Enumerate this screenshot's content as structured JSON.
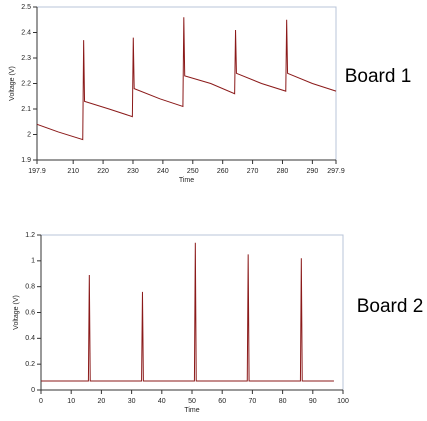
{
  "chart_data": [
    {
      "type": "line",
      "annotation": "Board 1",
      "xlabel": "Time",
      "ylabel": "Voltage (V)",
      "color": "#8b1a1a",
      "x": [
        197.9,
        205,
        213.2,
        213.5,
        213.8,
        222,
        229.8,
        230.1,
        230.4,
        239,
        246.7,
        247,
        247.3,
        256,
        264,
        264.3,
        264.6,
        273,
        281.1,
        281.4,
        281.7,
        290,
        297.9
      ],
      "values": [
        2.04,
        2.01,
        1.98,
        2.37,
        2.13,
        2.1,
        2.07,
        2.38,
        2.18,
        2.14,
        2.11,
        2.46,
        2.23,
        2.2,
        2.16,
        2.41,
        2.24,
        2.2,
        2.17,
        2.45,
        2.24,
        2.2,
        2.17
      ],
      "xlim": [
        197.9,
        297.9
      ],
      "xticks": [
        197.9,
        210,
        220,
        230,
        240,
        250,
        260,
        270,
        280,
        290,
        297.9
      ],
      "ylim": [
        1.9,
        2.5
      ],
      "yticks": [
        1.9,
        2,
        2.1,
        2.2,
        2.3,
        2.4,
        2.5
      ]
    },
    {
      "type": "line",
      "annotation": "Board 2",
      "xlabel": "Time",
      "ylabel": "Voltage (V)",
      "color": "#8b1a1a",
      "x": [
        0,
        15.7,
        16,
        16.3,
        33.3,
        33.6,
        33.9,
        50.8,
        51.1,
        51.4,
        68.3,
        68.6,
        68.9,
        85.9,
        86.2,
        86.5,
        97
      ],
      "values": [
        0.07,
        0.07,
        0.89,
        0.07,
        0.07,
        0.76,
        0.07,
        0.07,
        1.14,
        0.07,
        0.07,
        1.05,
        0.07,
        0.07,
        1.02,
        0.07,
        0.07
      ],
      "xlim": [
        0,
        100
      ],
      "xticks": [
        0,
        10,
        20,
        30,
        40,
        50,
        60,
        70,
        80,
        90,
        100
      ],
      "ylim": [
        0,
        1.2
      ],
      "yticks": [
        0,
        0.2,
        0.4,
        0.6,
        0.8,
        1,
        1.2
      ]
    }
  ]
}
